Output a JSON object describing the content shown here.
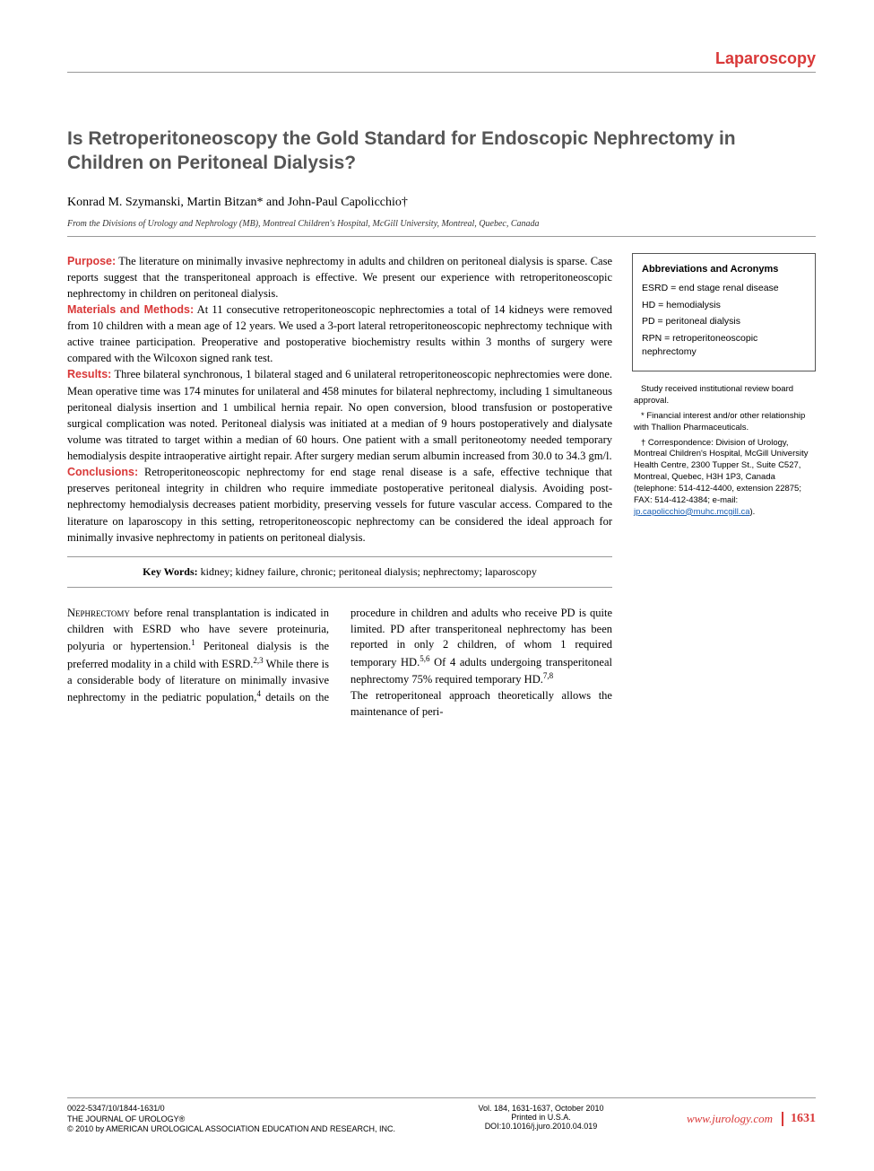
{
  "section_label": "Laparoscopy",
  "title": "Is Retroperitoneoscopy the Gold Standard for Endoscopic Nephrectomy in Children on Peritoneal Dialysis?",
  "authors": "Konrad M. Szymanski, Martin Bitzan* and John-Paul Capolicchio†",
  "affiliation": "From the Divisions of Urology and Nephrology (MB), Montreal Children's Hospital, McGill University, Montreal, Quebec, Canada",
  "abstract": {
    "purpose": {
      "label": "Purpose:",
      "text": " The literature on minimally invasive nephrectomy in adults and children on peritoneal dialysis is sparse. Case reports suggest that the transperitoneal approach is effective. We present our experience with retroperitoneoscopic nephrectomy in children on peritoneal dialysis."
    },
    "methods": {
      "label": "Materials and Methods:",
      "text": " At 11 consecutive retroperitoneoscopic nephrectomies a total of 14 kidneys were removed from 10 children with a mean age of 12 years. We used a 3-port lateral retroperitoneoscopic nephrectomy technique with active trainee participation. Preoperative and postoperative biochemistry results within 3 months of surgery were compared with the Wilcoxon signed rank test."
    },
    "results": {
      "label": "Results:",
      "text": " Three bilateral synchronous, 1 bilateral staged and 6 unilateral retroperitoneoscopic nephrectomies were done. Mean operative time was 174 minutes for unilateral and 458 minutes for bilateral nephrectomy, including 1 simultaneous peritoneal dialysis insertion and 1 umbilical hernia repair. No open conversion, blood transfusion or postoperative surgical complication was noted. Peritoneal dialysis was initiated at a median of 9 hours postoperatively and dialysate volume was titrated to target within a median of 60 hours. One patient with a small peritoneotomy needed temporary hemodialysis despite intraoperative airtight repair. After surgery median serum albumin increased from 30.0 to 34.3 gm/l."
    },
    "conclusions": {
      "label": "Conclusions:",
      "text": " Retroperitoneoscopic nephrectomy for end stage renal disease is a safe, effective technique that preserves peritoneal integrity in children who require immediate postoperative peritoneal dialysis. Avoiding post-nephrectomy hemodialysis decreases patient morbidity, preserving vessels for future vascular access. Compared to the literature on laparoscopy in this setting, retroperitoneoscopic nephrectomy can be considered the ideal approach for minimally invasive nephrectomy in patients on peritoneal dialysis."
    }
  },
  "keywords": {
    "label": "Key Words:",
    "text": " kidney; kidney failure, chronic; peritoneal dialysis; nephrectomy; laparoscopy"
  },
  "abbrev": {
    "heading": "Abbreviations and Acronyms",
    "items": [
      "ESRD = end stage renal disease",
      "HD = hemodialysis",
      "PD = peritoneal dialysis",
      "RPN = retroperitoneoscopic nephrectomy"
    ]
  },
  "notes": {
    "n1": "Study received institutional review board approval.",
    "n2": "* Financial interest and/or other relationship with Thallion Pharmaceuticals.",
    "n3": "† Correspondence: Division of Urology, Montreal Children's Hospital, McGill University Health Centre, 2300 Tupper St., Suite C527, Montreal, Quebec, H3H 1P3, Canada (telephone: 514-412-4400, extension 22875; FAX: 514-412-4384; e-mail: ",
    "email": "jp.capolicchio@muhc.mcgill.ca",
    "n3b": ")."
  },
  "body": {
    "smallcap": "Nephrectomy",
    "p1a": " before renal transplantation is indicated in children with ESRD who have severe proteinuria, polyuria or hypertension.",
    "r1": "1",
    "p1b": " Peritoneal dialysis is the preferred modality in a child with ESRD.",
    "r23": "2,3",
    "p1c": " While there is a considerable body of literature on minimally invasive nephrectomy in the pediatric population,",
    "r4": "4",
    "p1d": " details on the procedure in children and adults who receive PD is quite limited. PD after transperitoneal nephrectomy has been reported in only 2 children, of whom 1 required temporary HD.",
    "r56": "5,6",
    "p1e": " Of 4 adults undergoing transperitoneal nephrectomy 75% required temporary HD.",
    "r78": "7,8",
    "p2": "The retroperitoneal approach theoretically allows the maintenance of peri-"
  },
  "footer": {
    "id": "0022-5347/10/1844-1631/0",
    "journal": "THE JOURNAL OF UROLOGY®",
    "copyright": "© 2010 by AMERICAN UROLOGICAL ASSOCIATION EDUCATION AND RESEARCH, INC.",
    "vol": "Vol. 184, 1631-1637, October 2010",
    "printed": "Printed in U.S.A.",
    "doi": "DOI:10.1016/j.juro.2010.04.019",
    "url": "www.jurology.com",
    "page": "1631"
  },
  "colors": {
    "accent": "#d93838",
    "link": "#1a5fb4",
    "divider": "#999999",
    "heading_gray": "#555555"
  }
}
